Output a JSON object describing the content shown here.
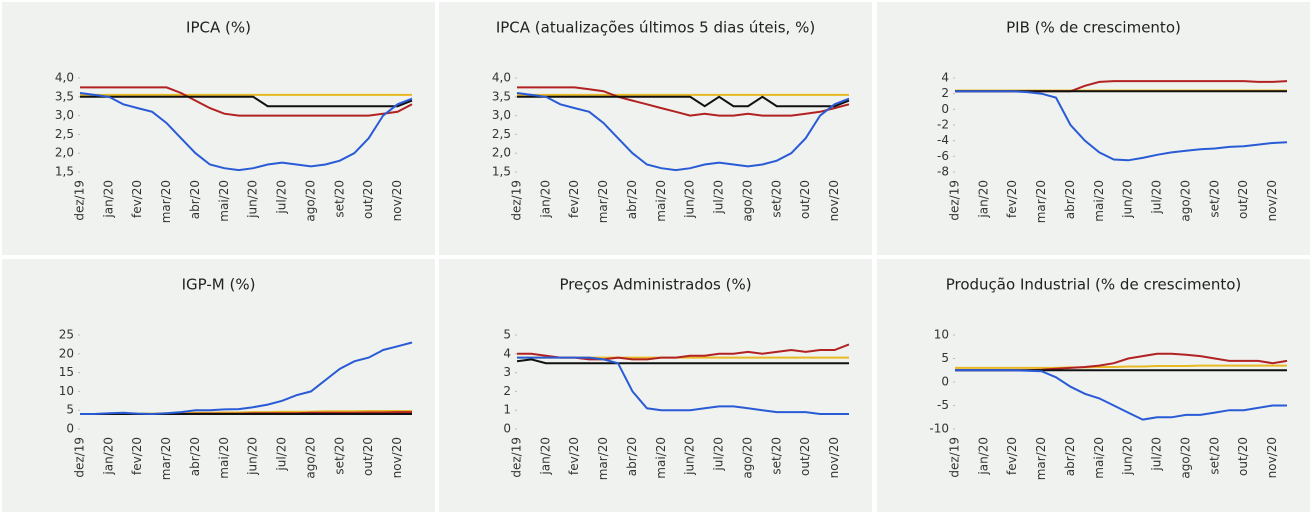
{
  "chart_data": [
    {
      "type": "line",
      "title": "IPCA (%)",
      "categories": [
        "dez/19",
        null,
        "jan/20",
        null,
        "fev/20",
        null,
        "mar/20",
        null,
        "abr/20",
        null,
        "mai/20",
        null,
        "jun/20",
        null,
        "jul/20",
        null,
        "ago/20",
        null,
        "set/20",
        null,
        "out/20",
        null,
        "nov/20",
        null
      ],
      "ylim": [
        1.5,
        4.0
      ],
      "yticks": [
        {
          "value": 1.5,
          "label": "1,5"
        },
        {
          "value": 2.0,
          "label": "2,0"
        },
        {
          "value": 2.5,
          "label": "2,5"
        },
        {
          "value": 3.0,
          "label": "3,0"
        },
        {
          "value": 3.5,
          "label": "3,5"
        },
        {
          "value": 4.0,
          "label": "4,0"
        }
      ],
      "series": [
        {
          "color": "#e8b923",
          "values": [
            3.55,
            3.55,
            3.55,
            3.55,
            3.55,
            3.55,
            3.55,
            3.55,
            3.55,
            3.55,
            3.55,
            3.55,
            3.55,
            3.55,
            3.55,
            3.55,
            3.55,
            3.55,
            3.55,
            3.55,
            3.55,
            3.55,
            3.55,
            3.55
          ]
        },
        {
          "color": "#b22222",
          "values": [
            3.75,
            3.75,
            3.75,
            3.75,
            3.75,
            3.75,
            3.75,
            3.6,
            3.4,
            3.2,
            3.05,
            3.0,
            3.0,
            3.0,
            3.0,
            3.0,
            3.0,
            3.0,
            3.0,
            3.0,
            3.0,
            3.05,
            3.1,
            3.3
          ]
        },
        {
          "color": "#111111",
          "values": [
            3.5,
            3.5,
            3.5,
            3.5,
            3.5,
            3.5,
            3.5,
            3.5,
            3.5,
            3.5,
            3.5,
            3.5,
            3.5,
            3.25,
            3.25,
            3.25,
            3.25,
            3.25,
            3.25,
            3.25,
            3.25,
            3.25,
            3.25,
            3.4
          ]
        },
        {
          "color": "#2a5bd7",
          "values": [
            3.6,
            3.55,
            3.5,
            3.3,
            3.2,
            3.1,
            2.8,
            2.4,
            2.0,
            1.7,
            1.6,
            1.55,
            1.6,
            1.7,
            1.75,
            1.7,
            1.65,
            1.7,
            1.8,
            2.0,
            2.4,
            3.0,
            3.3,
            3.45
          ]
        }
      ]
    },
    {
      "type": "line",
      "title": "IPCA (atualizações últimos 5 dias úteis, %)",
      "categories": [
        "dez/19",
        null,
        "jan/20",
        null,
        "fev/20",
        null,
        "mar/20",
        null,
        "abr/20",
        null,
        "mai/20",
        null,
        "jun/20",
        null,
        "jul/20",
        null,
        "ago/20",
        null,
        "set/20",
        null,
        "out/20",
        null,
        "nov/20",
        null
      ],
      "ylim": [
        1.5,
        4.0
      ],
      "yticks": [
        {
          "value": 1.5,
          "label": "1,5"
        },
        {
          "value": 2.0,
          "label": "2,0"
        },
        {
          "value": 2.5,
          "label": "2,5"
        },
        {
          "value": 3.0,
          "label": "3,0"
        },
        {
          "value": 3.5,
          "label": "3,5"
        },
        {
          "value": 4.0,
          "label": "4,0"
        }
      ],
      "series": [
        {
          "color": "#e8b923",
          "values": [
            3.55,
            3.55,
            3.55,
            3.55,
            3.55,
            3.55,
            3.55,
            3.55,
            3.55,
            3.55,
            3.55,
            3.55,
            3.55,
            3.55,
            3.55,
            3.55,
            3.55,
            3.55,
            3.55,
            3.55,
            3.55,
            3.55,
            3.55,
            3.55
          ]
        },
        {
          "color": "#b22222",
          "values": [
            3.75,
            3.75,
            3.75,
            3.75,
            3.75,
            3.7,
            3.65,
            3.5,
            3.4,
            3.3,
            3.2,
            3.1,
            3.0,
            3.05,
            3.0,
            3.0,
            3.05,
            3.0,
            3.0,
            3.0,
            3.05,
            3.1,
            3.2,
            3.3
          ]
        },
        {
          "color": "#111111",
          "values": [
            3.5,
            3.5,
            3.5,
            3.5,
            3.5,
            3.5,
            3.5,
            3.5,
            3.5,
            3.5,
            3.5,
            3.5,
            3.5,
            3.25,
            3.5,
            3.25,
            3.25,
            3.5,
            3.25,
            3.25,
            3.25,
            3.25,
            3.25,
            3.4
          ]
        },
        {
          "color": "#2a5bd7",
          "values": [
            3.6,
            3.55,
            3.5,
            3.3,
            3.2,
            3.1,
            2.8,
            2.4,
            2.0,
            1.7,
            1.6,
            1.55,
            1.6,
            1.7,
            1.75,
            1.7,
            1.65,
            1.7,
            1.8,
            2.0,
            2.4,
            3.0,
            3.3,
            3.45
          ]
        }
      ]
    },
    {
      "type": "line",
      "title": "PIB (% de crescimento)",
      "categories": [
        "dez/19",
        null,
        "jan/20",
        null,
        "fev/20",
        null,
        "mar/20",
        null,
        "abr/20",
        null,
        "mai/20",
        null,
        "jun/20",
        null,
        "jul/20",
        null,
        "ago/20",
        null,
        "set/20",
        null,
        "out/20",
        null,
        "nov/20",
        null
      ],
      "ylim": [
        -8,
        4
      ],
      "yticks": [
        -8,
        -6,
        -4,
        -2,
        0,
        2,
        4
      ],
      "series": [
        {
          "color": "#e8b923",
          "values": [
            2.4,
            2.4,
            2.4,
            2.4,
            2.4,
            2.4,
            2.4,
            2.4,
            2.4,
            2.4,
            2.4,
            2.4,
            2.4,
            2.4,
            2.4,
            2.4,
            2.4,
            2.4,
            2.4,
            2.4,
            2.4,
            2.4,
            2.4,
            2.4
          ]
        },
        {
          "color": "#b22222",
          "values": [
            2.3,
            2.3,
            2.3,
            2.3,
            2.3,
            2.3,
            2.3,
            2.3,
            2.3,
            3.0,
            3.5,
            3.6,
            3.6,
            3.6,
            3.6,
            3.6,
            3.6,
            3.6,
            3.6,
            3.6,
            3.6,
            3.5,
            3.5,
            3.6
          ]
        },
        {
          "color": "#111111",
          "values": [
            2.3,
            2.3,
            2.3,
            2.3,
            2.3,
            2.3,
            2.3,
            2.3,
            2.3,
            2.3,
            2.3,
            2.3,
            2.3,
            2.3,
            2.3,
            2.3,
            2.3,
            2.3,
            2.3,
            2.3,
            2.3,
            2.3,
            2.3,
            2.3
          ]
        },
        {
          "color": "#2a5bd7",
          "values": [
            2.3,
            2.3,
            2.3,
            2.3,
            2.3,
            2.2,
            2.0,
            1.5,
            -2,
            -4,
            -5.5,
            -6.4,
            -6.5,
            -6.2,
            -5.8,
            -5.5,
            -5.3,
            -5.1,
            -5.0,
            -4.8,
            -4.7,
            -4.5,
            -4.3,
            -4.2
          ]
        }
      ]
    },
    {
      "type": "line",
      "title": "IGP-M (%)",
      "categories": [
        "dez/19",
        null,
        "jan/20",
        null,
        "fev/20",
        null,
        "mar/20",
        null,
        "abr/20",
        null,
        "mai/20",
        null,
        "jun/20",
        null,
        "jul/20",
        null,
        "ago/20",
        null,
        "set/20",
        null,
        "out/20",
        null,
        "nov/20",
        null
      ],
      "ylim": [
        0,
        25
      ],
      "yticks": [
        0,
        5,
        10,
        15,
        20,
        25
      ],
      "series": [
        {
          "color": "#e8b923",
          "values": [
            4.0,
            4.0,
            4.1,
            4.1,
            4.1,
            4.1,
            4.2,
            4.2,
            4.3,
            4.3,
            4.4,
            4.4,
            4.5,
            4.5,
            4.6,
            4.6,
            4.6,
            4.7,
            4.7,
            4.7,
            4.8,
            4.8,
            4.8,
            4.8
          ]
        },
        {
          "color": "#b22222",
          "values": [
            4.0,
            4.0,
            4.0,
            4.0,
            4.0,
            4.0,
            4.0,
            4.0,
            4.1,
            4.1,
            4.1,
            4.1,
            4.2,
            4.2,
            4.2,
            4.2,
            4.3,
            4.3,
            4.3,
            4.3,
            4.4,
            4.4,
            4.5,
            4.5
          ]
        },
        {
          "color": "#111111",
          "values": [
            4.0,
            4.0,
            4.0,
            4.0,
            4.0,
            4.0,
            4.0,
            4.0,
            4.0,
            4.0,
            4.0,
            4.0,
            4.0,
            4.0,
            4.0,
            4.0,
            4.0,
            4.0,
            4.0,
            4.0,
            4.0,
            4.0,
            4.0,
            4.0
          ]
        },
        {
          "color": "#2a5bd7",
          "values": [
            4.0,
            4.0,
            4.2,
            4.3,
            4.1,
            4.0,
            4.2,
            4.5,
            5.0,
            5.0,
            5.2,
            5.3,
            5.8,
            6.5,
            7.5,
            9.0,
            10,
            13,
            16,
            18,
            19,
            21,
            22,
            23
          ]
        }
      ]
    },
    {
      "type": "line",
      "title": "Preços Administrados (%)",
      "categories": [
        "dez/19",
        null,
        "jan/20",
        null,
        "fev/20",
        null,
        "mar/20",
        null,
        "abr/20",
        null,
        "mai/20",
        null,
        "jun/20",
        null,
        "jul/20",
        null,
        "ago/20",
        null,
        "set/20",
        null,
        "out/20",
        null,
        "nov/20",
        null
      ],
      "ylim": [
        0,
        5
      ],
      "yticks": [
        0,
        1,
        2,
        3,
        4,
        5
      ],
      "series": [
        {
          "color": "#e8b923",
          "values": [
            3.8,
            3.8,
            3.8,
            3.8,
            3.8,
            3.8,
            3.8,
            3.8,
            3.8,
            3.8,
            3.8,
            3.8,
            3.8,
            3.8,
            3.8,
            3.8,
            3.8,
            3.8,
            3.8,
            3.8,
            3.8,
            3.8,
            3.8,
            3.8
          ]
        },
        {
          "color": "#b22222",
          "values": [
            4.0,
            4.0,
            3.9,
            3.8,
            3.8,
            3.7,
            3.7,
            3.8,
            3.7,
            3.7,
            3.8,
            3.8,
            3.9,
            3.9,
            4.0,
            4.0,
            4.1,
            4.0,
            4.1,
            4.2,
            4.1,
            4.2,
            4.2,
            4.5
          ]
        },
        {
          "color": "#111111",
          "values": [
            3.6,
            3.7,
            3.5,
            3.5,
            3.5,
            3.5,
            3.5,
            3.5,
            3.5,
            3.5,
            3.5,
            3.5,
            3.5,
            3.5,
            3.5,
            3.5,
            3.5,
            3.5,
            3.5,
            3.5,
            3.5,
            3.5,
            3.5,
            3.5
          ]
        },
        {
          "color": "#2a5bd7",
          "values": [
            3.8,
            3.8,
            3.8,
            3.8,
            3.8,
            3.8,
            3.7,
            3.5,
            2.0,
            1.1,
            1.0,
            1.0,
            1.0,
            1.1,
            1.2,
            1.2,
            1.1,
            1.0,
            0.9,
            0.9,
            0.9,
            0.8,
            0.8,
            0.8
          ]
        }
      ]
    },
    {
      "type": "line",
      "title": "Produção Industrial (% de crescimento)",
      "categories": [
        "dez/19",
        null,
        "jan/20",
        null,
        "fev/20",
        null,
        "mar/20",
        null,
        "abr/20",
        null,
        "mai/20",
        null,
        "jun/20",
        null,
        "jul/20",
        null,
        "ago/20",
        null,
        "set/20",
        null,
        "out/20",
        null,
        "nov/20",
        null
      ],
      "ylim": [
        -10,
        10
      ],
      "yticks": [
        -10,
        -5,
        0,
        5,
        10
      ],
      "series": [
        {
          "color": "#e8b923",
          "values": [
            3.0,
            3.0,
            3.0,
            3.0,
            3.0,
            3.0,
            3.0,
            3.0,
            3.1,
            3.1,
            3.2,
            3.2,
            3.3,
            3.3,
            3.4,
            3.4,
            3.4,
            3.5,
            3.5,
            3.5,
            3.5,
            3.5,
            3.5,
            3.5
          ]
        },
        {
          "color": "#b22222",
          "values": [
            2.5,
            2.5,
            2.5,
            2.5,
            2.5,
            2.5,
            2.6,
            2.8,
            3.0,
            3.2,
            3.5,
            4.0,
            5.0,
            5.5,
            6.0,
            6.0,
            5.8,
            5.5,
            5.0,
            4.5,
            4.5,
            4.5,
            4.0,
            4.5
          ]
        },
        {
          "color": "#111111",
          "values": [
            2.5,
            2.5,
            2.5,
            2.5,
            2.5,
            2.5,
            2.5,
            2.5,
            2.5,
            2.5,
            2.5,
            2.5,
            2.5,
            2.5,
            2.5,
            2.5,
            2.5,
            2.5,
            2.5,
            2.5,
            2.5,
            2.5,
            2.5,
            2.5
          ]
        },
        {
          "color": "#2a5bd7",
          "values": [
            2.5,
            2.5,
            2.5,
            2.5,
            2.5,
            2.4,
            2.3,
            1.0,
            -1.0,
            -2.5,
            -3.5,
            -5.0,
            -6.5,
            -8.0,
            -7.5,
            -7.5,
            -7.0,
            -7.0,
            -6.5,
            -6.0,
            -6.0,
            -5.5,
            -5.0,
            -5.0
          ]
        }
      ]
    }
  ]
}
